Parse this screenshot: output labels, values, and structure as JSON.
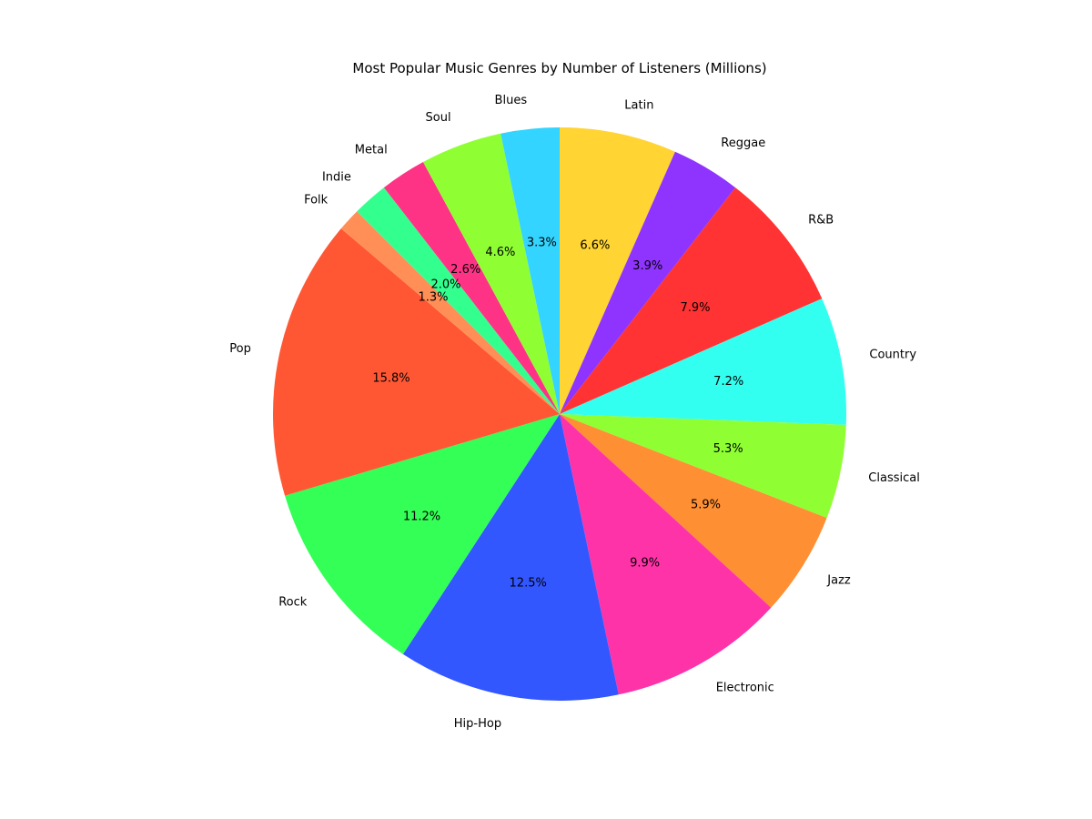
{
  "chart_data": {
    "type": "pie",
    "title": "Most Popular Music Genres by Number of Listeners (Millions)",
    "start_angle_deg": 90,
    "direction": "clockwise",
    "legend": "none",
    "slices": [
      {
        "label": "Latin",
        "percent": 6.6,
        "pct_label": "6.6%",
        "color": "#FFD433"
      },
      {
        "label": "Reggae",
        "percent": 3.9,
        "pct_label": "3.9%",
        "color": "#8F33FF"
      },
      {
        "label": "R&B",
        "percent": 7.9,
        "pct_label": "7.9%",
        "color": "#FF3333"
      },
      {
        "label": "Country",
        "percent": 7.2,
        "pct_label": "7.2%",
        "color": "#33FFF0"
      },
      {
        "label": "Classical",
        "percent": 5.3,
        "pct_label": "5.3%",
        "color": "#8FFF33"
      },
      {
        "label": "Jazz",
        "percent": 5.9,
        "pct_label": "5.9%",
        "color": "#FF8F33"
      },
      {
        "label": "Electronic",
        "percent": 9.9,
        "pct_label": "9.9%",
        "color": "#FF33A8"
      },
      {
        "label": "Hip-Hop",
        "percent": 12.5,
        "pct_label": "12.5%",
        "color": "#3357FF"
      },
      {
        "label": "Rock",
        "percent": 11.2,
        "pct_label": "11.2%",
        "color": "#33FF57"
      },
      {
        "label": "Pop",
        "percent": 15.8,
        "pct_label": "15.8%",
        "color": "#FF5733"
      },
      {
        "label": "Folk",
        "percent": 1.3,
        "pct_label": "1.3%",
        "color": "#FF8F57"
      },
      {
        "label": "Indie",
        "percent": 2.0,
        "pct_label": "2.0%",
        "color": "#33FF8F"
      },
      {
        "label": "Metal",
        "percent": 2.6,
        "pct_label": "2.6%",
        "color": "#FF3385"
      },
      {
        "label": "Soul",
        "percent": 4.6,
        "pct_label": "4.6%",
        "color": "#8FFF33"
      },
      {
        "label": "Blues",
        "percent": 3.3,
        "pct_label": "3.3%",
        "color": "#33D4FF"
      }
    ]
  }
}
